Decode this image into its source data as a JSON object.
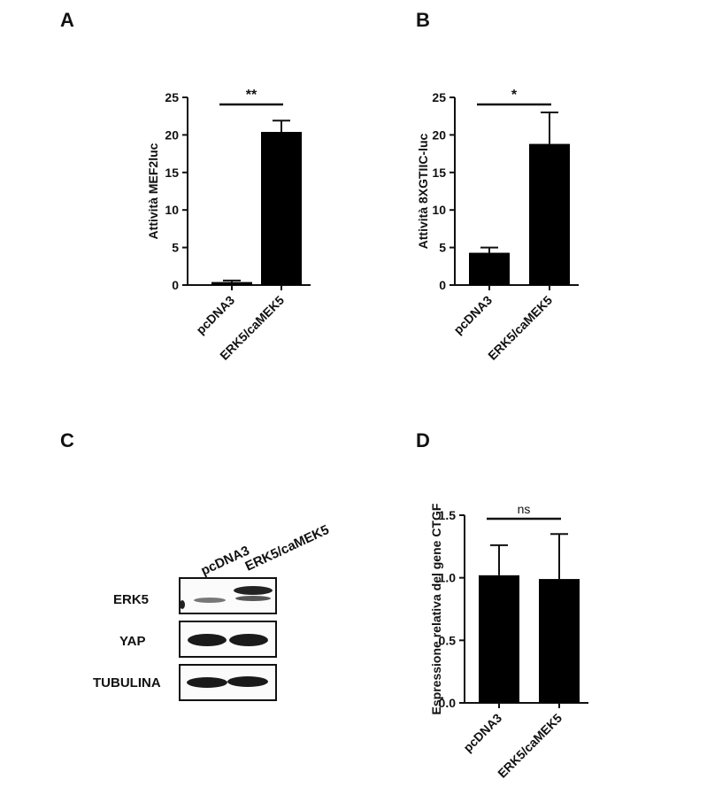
{
  "panels": {
    "a": "A",
    "b": "B",
    "c": "C",
    "d": "D"
  },
  "blot": {
    "lanes": [
      "pcDNA3",
      "ERK5/caMEK5"
    ],
    "rows": [
      "ERK5",
      "YAP",
      "TUBULINA"
    ]
  },
  "chart_data": [
    {
      "type": "bar",
      "title": "",
      "categories": [
        "pcDNA3",
        "ERK5/caMEK5"
      ],
      "values": [
        0.4,
        20.4
      ],
      "errors": [
        0.2,
        1.5
      ],
      "ylabel": "Attività MEF2luc",
      "xlabel": "",
      "ylim": [
        0,
        25
      ],
      "yticks": [
        0,
        5,
        10,
        15,
        20,
        25
      ],
      "significance": "**",
      "color": "#000000"
    },
    {
      "type": "bar",
      "title": "",
      "categories": [
        "pcDNA3",
        "ERK5/caMEK5"
      ],
      "values": [
        4.3,
        18.8
      ],
      "errors": [
        0.7,
        4.2
      ],
      "ylabel": "Attività 8XGTIIC-luc",
      "xlabel": "",
      "ylim": [
        0,
        25
      ],
      "yticks": [
        0,
        5,
        10,
        15,
        20,
        25
      ],
      "significance": "*",
      "color": "#000000"
    },
    {
      "type": "bar",
      "title": "",
      "categories": [
        "pcDNA3",
        "ERK5/caMEK5"
      ],
      "values": [
        1.02,
        0.99
      ],
      "errors": [
        0.24,
        0.36
      ],
      "ylabel": "Espressione relativa del gene CTGF",
      "xlabel": "",
      "ylim": [
        0,
        1.5
      ],
      "yticks": [
        "0.0",
        "0.5",
        "1.0",
        "1.5"
      ],
      "significance": "ns",
      "color": "#000000"
    }
  ]
}
